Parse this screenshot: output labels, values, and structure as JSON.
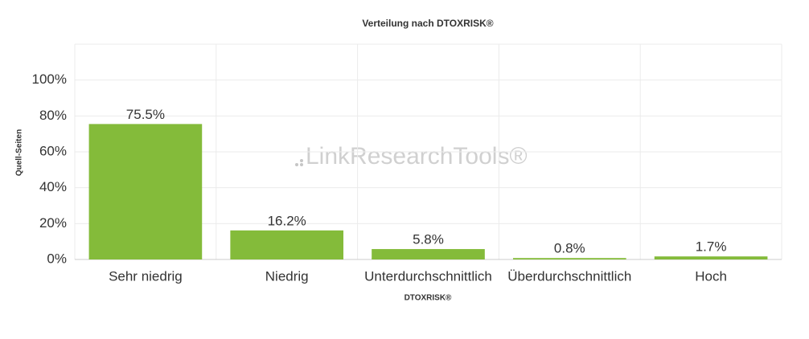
{
  "chart_data": {
    "type": "bar",
    "title": "Verteilung nach DTOXRISK®",
    "xlabel": "DTOXRISK®",
    "ylabel": "Quell-Seiten",
    "watermark": "LinkResearchTools®",
    "categories": [
      "Sehr niedrig",
      "Niedrig",
      "Unterdurchschnittlich",
      "Überdurchschnittlich",
      "Hoch"
    ],
    "values": [
      75.5,
      16.2,
      5.8,
      0.8,
      1.7
    ],
    "value_labels": [
      "75.5%",
      "16.2%",
      "5.8%",
      "0.8%",
      "1.7%"
    ],
    "color": "#84bb3a",
    "ylim": [
      0,
      120
    ],
    "yticks": [
      {
        "value": 0,
        "label": "0%"
      },
      {
        "value": 20,
        "label": "20%"
      },
      {
        "value": 40,
        "label": "40%"
      },
      {
        "value": 60,
        "label": "60%"
      },
      {
        "value": 80,
        "label": "80%"
      },
      {
        "value": 100,
        "label": "100%"
      }
    ],
    "grid": true
  }
}
